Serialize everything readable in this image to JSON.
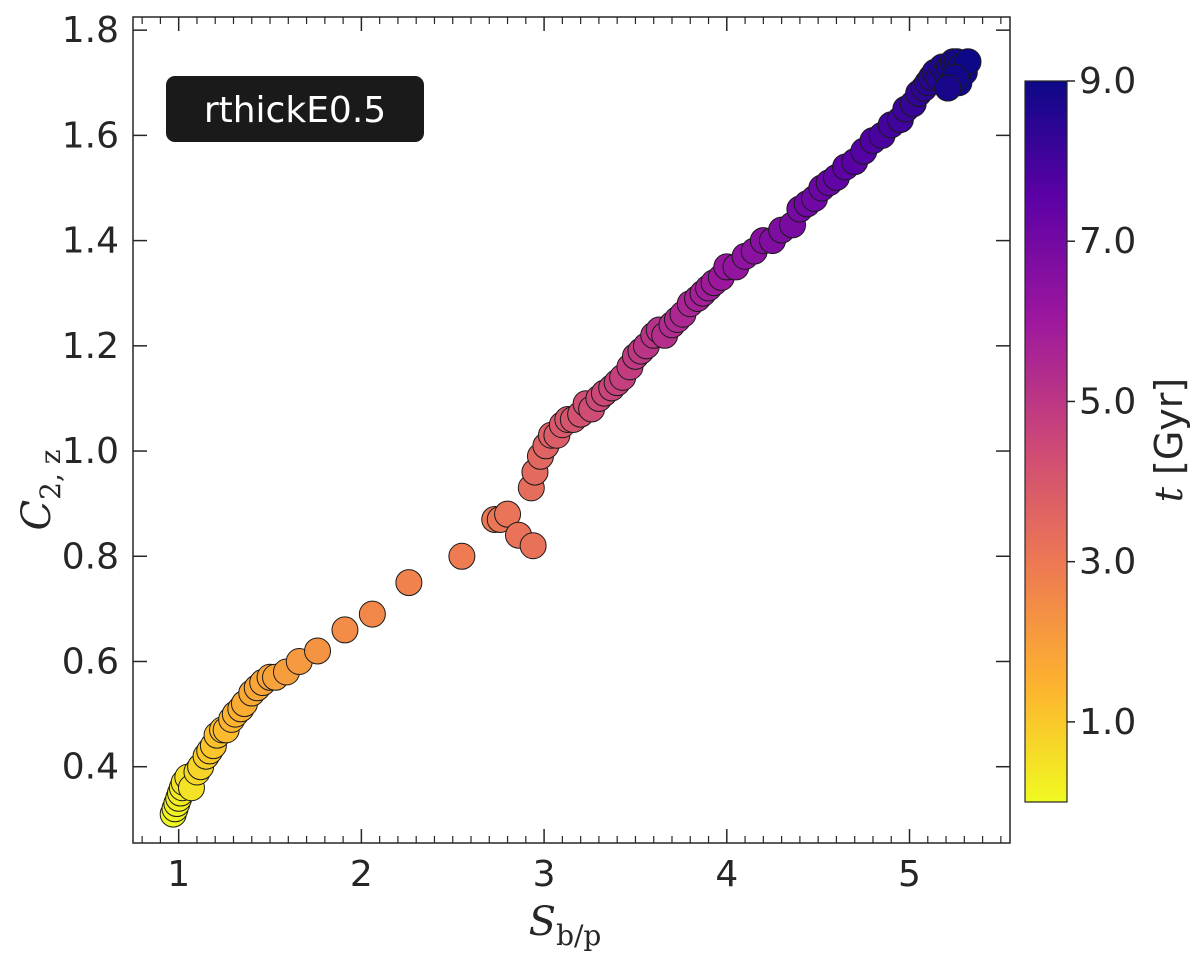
{
  "chart_data": {
    "type": "scatter",
    "title": "",
    "annotation": "rthickE0.5",
    "xlabel": {
      "main": "S",
      "sub": "b/p"
    },
    "ylabel": {
      "main": "C",
      "sub": "2, z"
    },
    "xlim": [
      0.75,
      5.55
    ],
    "ylim": [
      0.255,
      1.825
    ],
    "xticks": [
      1,
      2,
      3,
      4,
      5
    ],
    "xtick_labels": [
      "1",
      "2",
      "3",
      "4",
      "5"
    ],
    "yticks": [
      0.4,
      0.6,
      0.8,
      1.0,
      1.2,
      1.4,
      1.6,
      1.8
    ],
    "ytick_labels": [
      "0.4",
      "0.6",
      "0.8",
      "1.0",
      "1.2",
      "1.4",
      "1.6",
      "1.8"
    ],
    "grid": false,
    "colormap": "plasma_r",
    "colorbar": {
      "label_main": "t",
      "label_unit": "[Gyr]",
      "range": [
        0.0,
        9.0
      ],
      "ticks": [
        1.0,
        3.0,
        5.0,
        7.0,
        9.0
      ],
      "tick_labels": [
        "1.0",
        "3.0",
        "5.0",
        "7.0",
        "9.0"
      ],
      "colors": [
        "#f0f921",
        "#fdb32f",
        "#ed7953",
        "#cc4778",
        "#9c179e",
        "#5c01a6",
        "#0d0887"
      ]
    },
    "series": [
      {
        "x": [
          0.97,
          0.98,
          0.99,
          1.0,
          1.01,
          1.02,
          1.03,
          1.05,
          1.07,
          1.1,
          1.12,
          1.15,
          1.17,
          1.19,
          1.21,
          1.24,
          1.26,
          1.29,
          1.31,
          1.34,
          1.36,
          1.4,
          1.43,
          1.46,
          1.5,
          1.53,
          1.59,
          1.66,
          1.76,
          1.91,
          2.06,
          2.26,
          2.55,
          2.73,
          2.76,
          2.8,
          2.86,
          2.94,
          2.93,
          2.95,
          2.98,
          3.01,
          3.04,
          3.07,
          3.1,
          3.13,
          3.16,
          3.2,
          3.23,
          3.26,
          3.3,
          3.33,
          3.37,
          3.4,
          3.43,
          3.47,
          3.5,
          3.53,
          3.56,
          3.6,
          3.63,
          3.66,
          3.7,
          3.73,
          3.76,
          3.8,
          3.84,
          3.87,
          3.9,
          3.93,
          3.97,
          4.0,
          4.05,
          4.1,
          4.15,
          4.2,
          4.25,
          4.3,
          4.36,
          4.4,
          4.44,
          4.48,
          4.52,
          4.56,
          4.6,
          4.65,
          4.7,
          4.75,
          4.8,
          4.85,
          4.9,
          4.95,
          4.98,
          5.02,
          5.05,
          5.08,
          5.1,
          5.12,
          5.14,
          5.16,
          5.18,
          5.2,
          5.22,
          5.24,
          5.26,
          5.28,
          5.3,
          5.32,
          5.27,
          5.25,
          5.21
        ],
        "y": [
          0.31,
          0.32,
          0.33,
          0.34,
          0.35,
          0.36,
          0.37,
          0.38,
          0.36,
          0.39,
          0.4,
          0.42,
          0.43,
          0.44,
          0.46,
          0.47,
          0.47,
          0.49,
          0.5,
          0.51,
          0.52,
          0.54,
          0.55,
          0.56,
          0.57,
          0.57,
          0.58,
          0.6,
          0.62,
          0.66,
          0.69,
          0.75,
          0.8,
          0.87,
          0.87,
          0.88,
          0.84,
          0.82,
          0.93,
          0.96,
          0.99,
          1.01,
          1.03,
          1.03,
          1.05,
          1.06,
          1.06,
          1.07,
          1.09,
          1.08,
          1.1,
          1.11,
          1.12,
          1.13,
          1.14,
          1.16,
          1.18,
          1.19,
          1.2,
          1.22,
          1.23,
          1.22,
          1.24,
          1.25,
          1.26,
          1.28,
          1.29,
          1.3,
          1.31,
          1.32,
          1.33,
          1.35,
          1.35,
          1.37,
          1.38,
          1.4,
          1.4,
          1.42,
          1.43,
          1.46,
          1.47,
          1.48,
          1.5,
          1.51,
          1.52,
          1.54,
          1.55,
          1.57,
          1.59,
          1.6,
          1.62,
          1.63,
          1.65,
          1.66,
          1.68,
          1.69,
          1.7,
          1.71,
          1.72,
          1.71,
          1.73,
          1.72,
          1.73,
          1.74,
          1.74,
          1.73,
          1.72,
          1.74,
          1.7,
          1.71,
          1.69
        ],
        "t": [
          0.05,
          0.1,
          0.15,
          0.2,
          0.28,
          0.35,
          0.45,
          0.55,
          0.5,
          0.7,
          0.8,
          0.95,
          1.05,
          1.1,
          1.2,
          1.3,
          1.35,
          1.45,
          1.5,
          1.6,
          1.65,
          1.75,
          1.8,
          1.85,
          1.9,
          1.95,
          2.05,
          2.15,
          2.3,
          2.5,
          2.6,
          2.75,
          2.95,
          3.05,
          3.1,
          3.15,
          3.2,
          3.25,
          3.35,
          3.45,
          3.55,
          3.65,
          3.75,
          3.85,
          3.95,
          4.05,
          4.1,
          4.2,
          4.3,
          4.35,
          4.45,
          4.5,
          4.6,
          4.65,
          4.75,
          4.8,
          4.9,
          4.95,
          5.05,
          5.1,
          5.2,
          5.25,
          5.35,
          5.45,
          5.5,
          5.6,
          5.7,
          5.75,
          5.85,
          5.9,
          6.0,
          6.1,
          6.2,
          6.3,
          6.4,
          6.5,
          6.6,
          6.7,
          6.8,
          6.9,
          7.0,
          7.05,
          7.15,
          7.25,
          7.35,
          7.45,
          7.55,
          7.65,
          7.75,
          7.85,
          7.95,
          8.05,
          8.1,
          8.2,
          8.3,
          8.35,
          8.45,
          8.5,
          8.55,
          8.6,
          8.65,
          8.7,
          8.75,
          8.8,
          8.85,
          8.9,
          8.95,
          9.0,
          8.92,
          8.88,
          8.8
        ]
      }
    ]
  }
}
